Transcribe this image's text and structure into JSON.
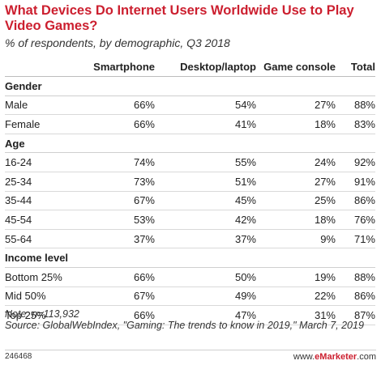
{
  "chart_data": {
    "type": "table",
    "title": "What Devices Do Internet Users Worldwide Use to Play Video Games?",
    "subtitle": "% of respondents, by demographic, Q3 2018",
    "columns": [
      "",
      "Smartphone",
      "Desktop/laptop",
      "Game console",
      "Total"
    ],
    "sections": [
      {
        "name": "Gender",
        "rows": [
          {
            "label": "Male",
            "values": [
              "66%",
              "54%",
              "27%",
              "88%"
            ]
          },
          {
            "label": "Female",
            "values": [
              "66%",
              "41%",
              "18%",
              "83%"
            ]
          }
        ]
      },
      {
        "name": "Age",
        "rows": [
          {
            "label": "16-24",
            "values": [
              "74%",
              "55%",
              "24%",
              "92%"
            ]
          },
          {
            "label": "25-34",
            "values": [
              "73%",
              "51%",
              "27%",
              "91%"
            ]
          },
          {
            "label": "35-44",
            "values": [
              "67%",
              "45%",
              "25%",
              "86%"
            ]
          },
          {
            "label": "45-54",
            "values": [
              "53%",
              "42%",
              "18%",
              "76%"
            ]
          },
          {
            "label": "55-64",
            "values": [
              "37%",
              "37%",
              "9%",
              "71%"
            ]
          }
        ]
      },
      {
        "name": "Income level",
        "rows": [
          {
            "label": "Bottom 25%",
            "values": [
              "66%",
              "50%",
              "19%",
              "88%"
            ]
          },
          {
            "label": "Mid 50%",
            "values": [
              "67%",
              "49%",
              "22%",
              "86%"
            ]
          },
          {
            "label": "Top 25%",
            "values": [
              "66%",
              "47%",
              "31%",
              "87%"
            ]
          }
        ]
      }
    ]
  },
  "note": "Note: n=113,932",
  "source": "Source: GlobalWebIndex, \"Gaming: The trends to know in 2019,\" March 7, 2019",
  "chart_id": "246468",
  "brand": {
    "prefix": "www.",
    "name": "eMarketer",
    "suffix": ".com"
  },
  "colors": {
    "title": "#cc1f2f",
    "rule": "#d9d9d9"
  }
}
